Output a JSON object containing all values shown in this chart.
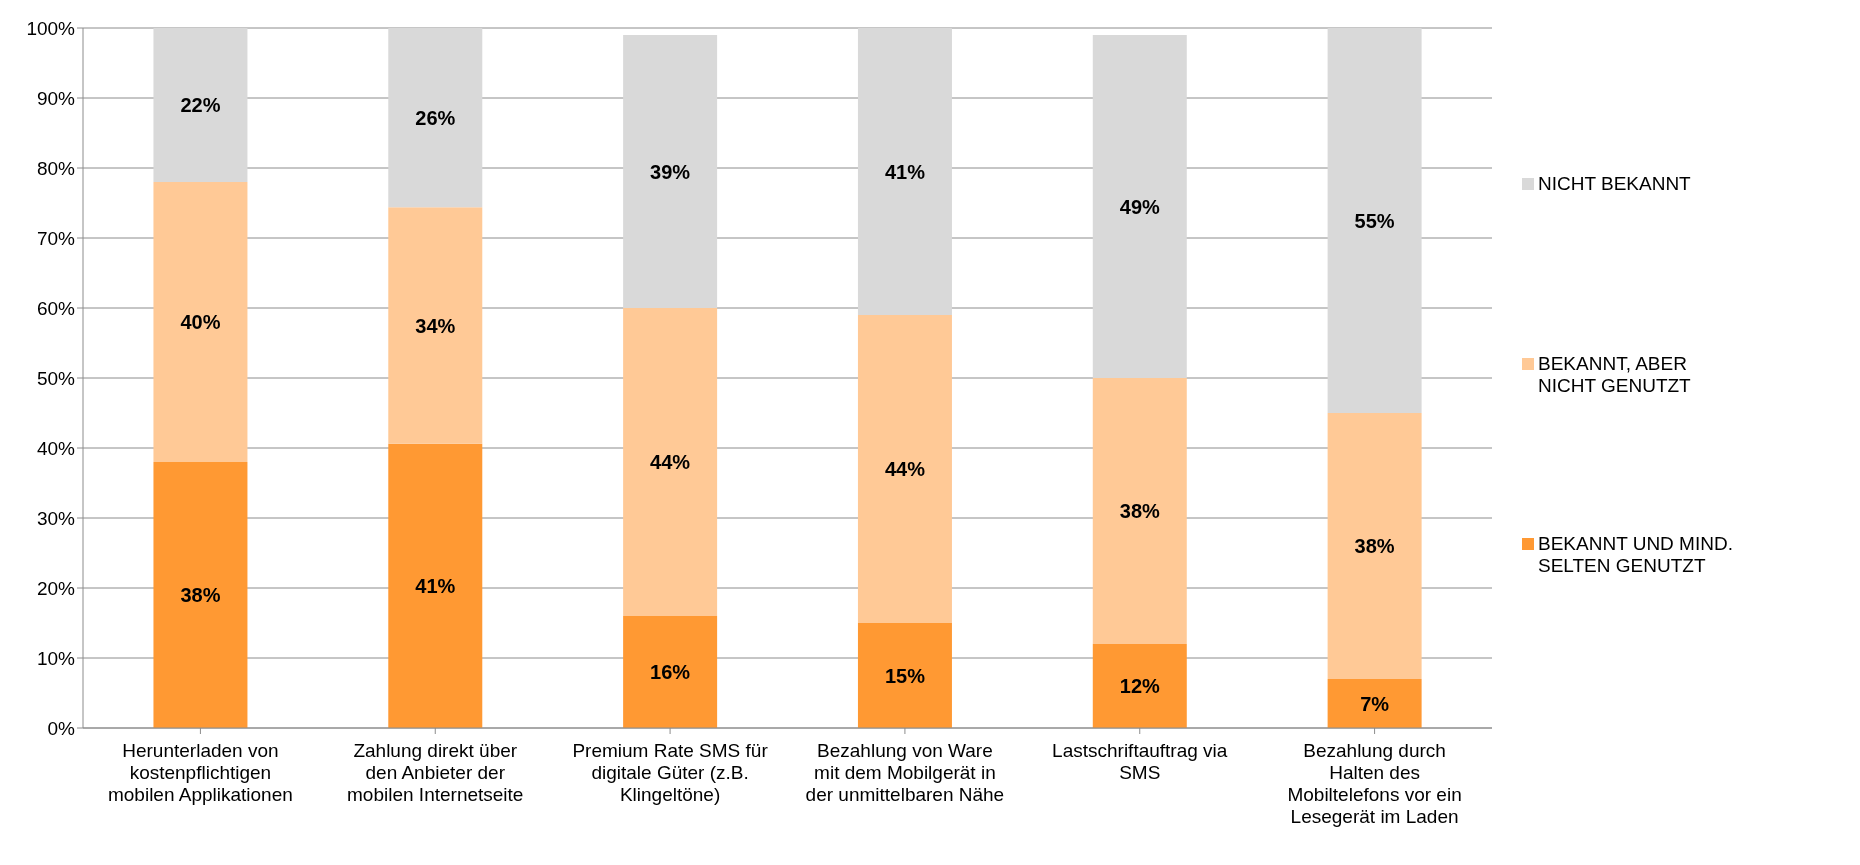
{
  "chart_data": {
    "type": "bar",
    "stacked": true,
    "categories": [
      "Herunterladen von kostenpflichtigen mobilen Applikationen",
      "Zahlung direkt über den Anbieter der mobilen Internetseite",
      "Premium Rate SMS für digitale Güter (z.B. Klingeltöne)",
      "Bezahlung von Ware mit dem Mobilgerät in der unmittelbaren Nähe",
      "Lastschriftauftrag via SMS",
      "Bezahlung durch Halten des Mobiltelefons vor ein Lesegerät im Laden"
    ],
    "series": [
      {
        "name": "BEKANNT UND MIND. SELTEN GENUTZT",
        "color": "#ff9933",
        "values": [
          38,
          40.6,
          16,
          15,
          12,
          7
        ],
        "value_labels": [
          "38%",
          "41%",
          "16%",
          "15%",
          "12%",
          "7%"
        ]
      },
      {
        "name": "BEKANNT, ABER NICHT GENUTZT",
        "color": "#ffc996",
        "values": [
          40,
          33.8,
          44,
          44,
          38,
          38
        ],
        "value_labels": [
          "40%",
          "34%",
          "44%",
          "44%",
          "38%",
          "38%"
        ]
      },
      {
        "name": "NICHT BEKANNT",
        "color": "#d9d9d9",
        "values": [
          22,
          25.6,
          39,
          41,
          49,
          55
        ],
        "value_labels": [
          "22%",
          "26%",
          "39%",
          "41%",
          "49%",
          "55%"
        ]
      }
    ],
    "ylim": [
      0,
      100
    ],
    "yticks": [
      {
        "value": 0,
        "label": "0%"
      },
      {
        "value": 10,
        "label": "10%"
      },
      {
        "value": 20,
        "label": "20%"
      },
      {
        "value": 30,
        "label": "30%"
      },
      {
        "value": 40,
        "label": "40%"
      },
      {
        "value": 50,
        "label": "50%"
      },
      {
        "value": 60,
        "label": "60%"
      },
      {
        "value": 70,
        "label": "70%"
      },
      {
        "value": 80,
        "label": "80%"
      },
      {
        "value": 90,
        "label": "90%"
      },
      {
        "value": 100,
        "label": "100%"
      }
    ],
    "grid": "y",
    "legend": "right"
  }
}
